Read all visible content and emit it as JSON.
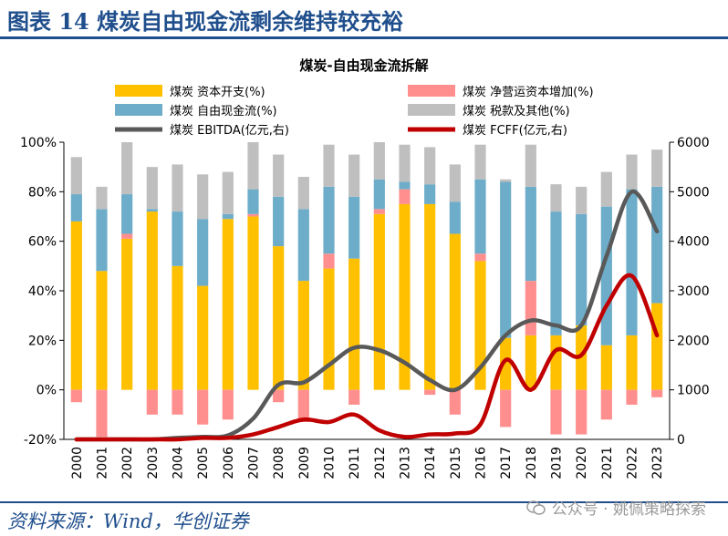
{
  "header": {
    "title": "图表 14  煤炭自由现金流剩余维持较充裕"
  },
  "footer": {
    "source": "资料来源：Wind，华创证券",
    "watermark": "公众号 · 姚佩策略探索"
  },
  "icons": {
    "watermark_icon": "wechat-icon"
  },
  "colors": {
    "capex": "#FFC000",
    "wc": "#FF8F8F",
    "fcf": "#6EADC9",
    "tax": "#BFBFBF",
    "ebitda": "#595959",
    "fcff": "#C00000",
    "title_blue": "#1F4E8C"
  },
  "chart_data": {
    "type": "bar",
    "title": "煤炭-自由现金流拆解",
    "categories": [
      "2000",
      "2001",
      "2002",
      "2003",
      "2004",
      "2005",
      "2006",
      "2007",
      "2008",
      "2009",
      "2010",
      "2011",
      "2012",
      "2013",
      "2014",
      "2015",
      "2016",
      "2017",
      "2018",
      "2019",
      "2020",
      "2021",
      "2022",
      "2023"
    ],
    "left_axis": {
      "ylim": [
        -20,
        100
      ],
      "ticks": [
        "-20%",
        "0%",
        "20%",
        "40%",
        "60%",
        "80%",
        "100%"
      ]
    },
    "right_axis": {
      "ylim": [
        0,
        6000
      ],
      "ticks": [
        "0",
        "1000",
        "2000",
        "3000",
        "4000",
        "5000",
        "6000"
      ]
    },
    "legend": {
      "capex": "煤炭 资本开支(%)",
      "wc": "煤炭 净营运资本增加(%)",
      "fcf": "煤炭 自由现金流(%)",
      "tax": "煤炭 税款及其他(%)",
      "ebitda": "煤炭 EBITDA(亿元,右)",
      "fcff": "煤炭 FCFF(亿元,右)"
    },
    "series": [
      {
        "name": "煤炭 资本开支(%)",
        "key": "capex",
        "values": [
          68,
          48,
          61,
          72,
          50,
          42,
          69,
          70,
          58,
          44,
          49,
          53,
          71,
          75,
          75,
          63,
          52,
          21,
          22,
          22,
          26,
          18,
          22,
          35
        ]
      },
      {
        "name": "煤炭 净营运资本增加(%)",
        "key": "wc",
        "values": [
          -5,
          -19,
          2,
          -10,
          -10,
          -14,
          -12,
          1,
          -5,
          -13,
          6,
          -6,
          2,
          6,
          -2,
          -10,
          3,
          -15,
          22,
          -18,
          -18,
          -12,
          -6,
          -3
        ]
      },
      {
        "name": "煤炭 自由现金流(%)",
        "key": "fcf",
        "values": [
          11,
          25,
          16,
          1,
          22,
          27,
          2,
          10,
          20,
          29,
          27,
          25,
          12,
          3,
          8,
          13,
          30,
          63,
          38,
          50,
          45,
          56,
          59,
          47
        ]
      },
      {
        "name": "煤炭 税款及其他(%)",
        "key": "tax",
        "values": [
          15,
          9,
          21,
          17,
          19,
          18,
          17,
          19,
          17,
          13,
          17,
          17,
          15,
          15,
          15,
          15,
          14,
          1,
          17,
          11,
          11,
          14,
          14,
          15
        ]
      },
      {
        "name": "煤炭 EBITDA(亿元,右)",
        "key": "ebitda",
        "values": [
          0,
          0,
          0,
          0,
          30,
          50,
          80,
          420,
          1100,
          1150,
          1500,
          1850,
          1800,
          1550,
          1200,
          1000,
          1450,
          2100,
          2400,
          2300,
          2300,
          3700,
          5000,
          4200
        ]
      },
      {
        "name": "煤炭 FCFF(亿元,右)",
        "key": "fcff",
        "values": [
          0,
          0,
          0,
          0,
          0,
          30,
          30,
          100,
          250,
          400,
          350,
          500,
          180,
          50,
          100,
          120,
          300,
          1600,
          1000,
          1800,
          1700,
          2700,
          3300,
          2100
        ]
      }
    ]
  }
}
